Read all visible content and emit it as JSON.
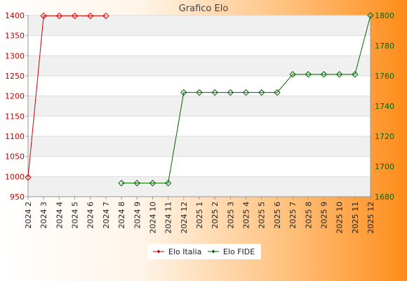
{
  "chart_data": {
    "type": "line",
    "title": "Grafico Elo",
    "categories": [
      "2024 2",
      "2024 3",
      "2024 4",
      "2024 5",
      "2024 6",
      "2024 7",
      "2024 8",
      "2024 9",
      "2024 10",
      "2024 11",
      "2024 12",
      "2025 1",
      "2025 2",
      "2025 3",
      "2025 4",
      "2025 5",
      "2025 6",
      "2025 7",
      "2025 8",
      "2025 9",
      "2025 10",
      "2025 11",
      "2025 12"
    ],
    "series": [
      {
        "name": "Elo Italia",
        "axis": "left",
        "color": "#cc0000",
        "values": [
          998,
          1399,
          1399,
          1399,
          1399,
          1399,
          null,
          null,
          null,
          null,
          null,
          null,
          null,
          null,
          null,
          null,
          null,
          null,
          null,
          null,
          null,
          null,
          null
        ]
      },
      {
        "name": "Elo FIDE",
        "axis": "right",
        "color": "#006600",
        "values": [
          null,
          null,
          null,
          null,
          null,
          null,
          1689,
          1689,
          1689,
          1689,
          1749,
          1749,
          1749,
          1749,
          1749,
          1749,
          1749,
          1761,
          1761,
          1761,
          1761,
          1761,
          1800
        ]
      }
    ],
    "y_left": {
      "ylim": [
        950,
        1400
      ],
      "ticks": [
        950,
        1000,
        1050,
        1100,
        1150,
        1200,
        1250,
        1300,
        1350,
        1400
      ],
      "color": "#cc0000"
    },
    "y_right": {
      "ylim": [
        1680,
        1800
      ],
      "ticks": [
        1680,
        1700,
        1720,
        1740,
        1760,
        1780,
        1800
      ],
      "color": "#006600"
    },
    "grid": true,
    "legend": "bottom-center",
    "colors": {
      "background_left": "#ffffff",
      "background_right": "#ff8c1a",
      "plot_band": "#f0f0f0",
      "plot_bg": "#ffffff"
    }
  }
}
